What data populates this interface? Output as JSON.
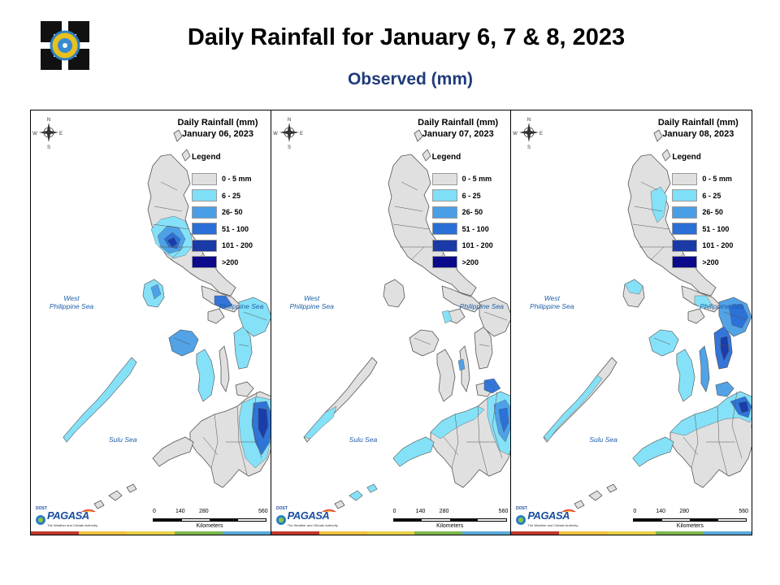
{
  "header": {
    "title": "Daily Rainfall for January 6, 7 & 8, 2023",
    "subtitle": "Observed (mm)"
  },
  "legend": {
    "title": "Legend",
    "classes": [
      {
        "label": "0 - 5 mm",
        "color": "#e0e0e0"
      },
      {
        "label": "6 - 25",
        "color": "#7fe0f8"
      },
      {
        "label": "26- 50",
        "color": "#4a9ee6"
      },
      {
        "label": "51 - 100",
        "color": "#2a6fd6"
      },
      {
        "label": "101 - 200",
        "color": "#1a3aa8"
      },
      {
        "label": ">200",
        "color": "#0a0a8a"
      }
    ]
  },
  "panels": [
    {
      "title": "Daily Rainfall (mm)",
      "date": "January 06, 2023"
    },
    {
      "title": "Daily Rainfall (mm)",
      "date": "January 07, 2023"
    },
    {
      "title": "Daily Rainfall (mm)",
      "date": "January 08, 2023"
    }
  ],
  "seas": {
    "west": "West\nPhilippine Sea",
    "east": "Philippine Sea",
    "sulu": "Sulu Sea"
  },
  "compass": {
    "n": "N",
    "s": "S",
    "e": "E",
    "w": "W"
  },
  "scale": {
    "ticks": [
      "0",
      "140",
      "280",
      "560"
    ],
    "unit": "Kilometers"
  },
  "branding": {
    "name": "PAGASA",
    "tagline": "The Weather and Climate Authority",
    "dost": "DOST"
  },
  "colors": {
    "land": "#e0e0e0",
    "border": "#555555",
    "strip": [
      "#c0392b",
      "#f0c040",
      "#e8d048",
      "#7bb64a",
      "#5aa8d8"
    ]
  }
}
